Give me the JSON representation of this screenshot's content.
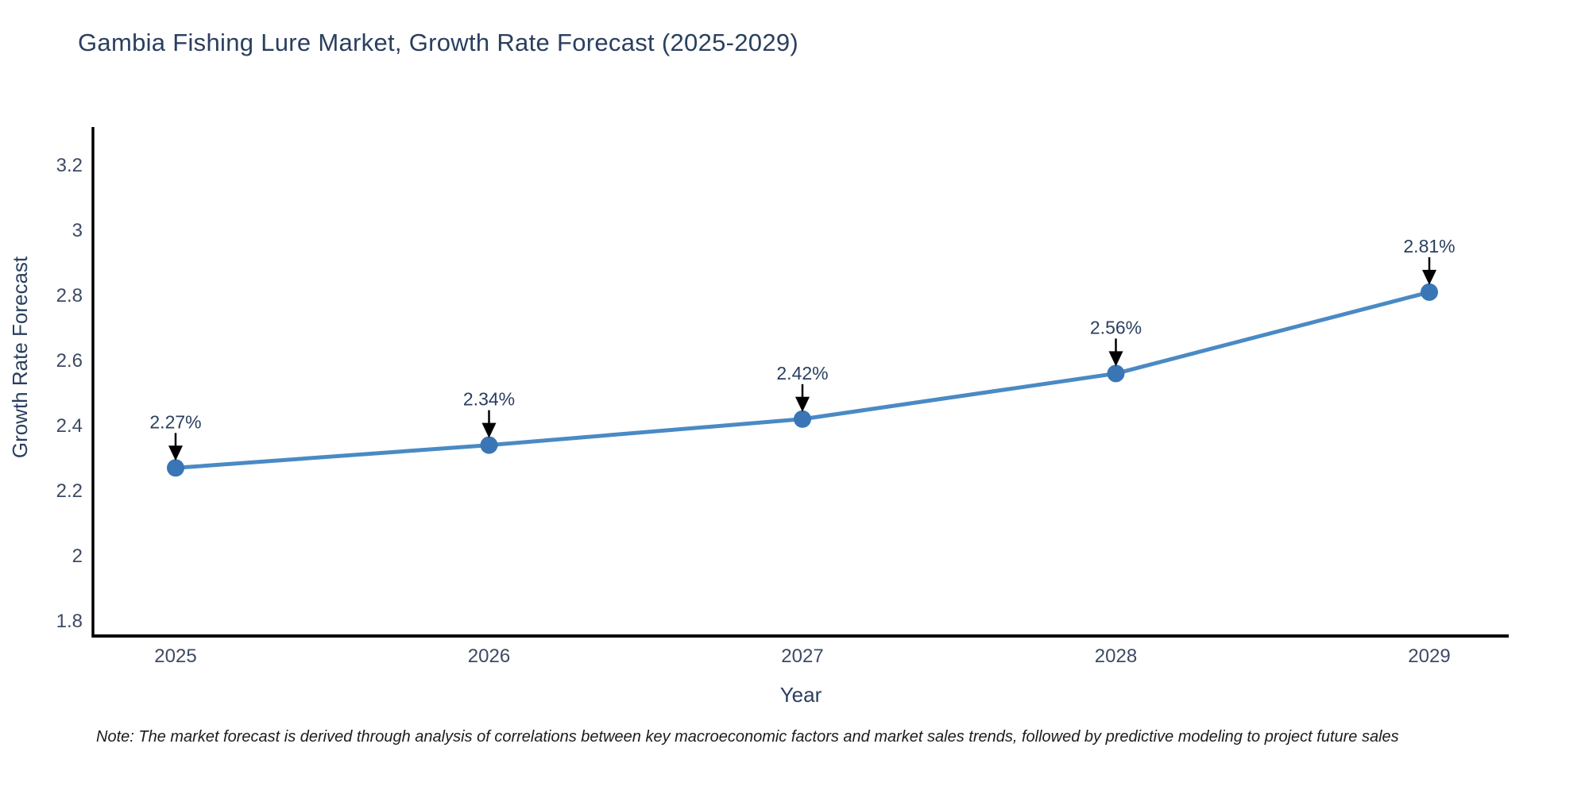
{
  "page": {
    "background_color": "#ffffff"
  },
  "chart": {
    "title": "Gambia Fishing Lure Market, Growth Rate Forecast (2025-2029)",
    "note": "Note: The market forecast is derived through analysis of correlations between key macroeconomic factors and market sales trends, followed by predictive modeling to project future sales",
    "x_axis": {
      "label": "Year",
      "tick_labels": [
        "2025",
        "2026",
        "2027",
        "2028",
        "2029"
      ]
    },
    "y_axis": {
      "label": "Growth Rate Forecast",
      "tick_labels": [
        "3.2",
        "3",
        "2.8",
        "2.6",
        "2.4",
        "2.2",
        "2",
        "1.8"
      ]
    },
    "colors": {
      "line": "#4a8ac4",
      "marker": "#3a76b5",
      "axis_line": "#000000",
      "arrow": "#000000",
      "title_text": "#2a3f5f",
      "tick_text": "#3d4a63",
      "annotation_text": "#2a3f5f",
      "note_text": "#1c1c1c"
    }
  },
  "chart_data": {
    "type": "line",
    "title": "Gambia Fishing Lure Market, Growth Rate Forecast (2025-2029)",
    "xlabel": "Year",
    "ylabel": "Growth Rate Forecast",
    "x": [
      2025,
      2026,
      2027,
      2028,
      2029
    ],
    "series": [
      {
        "name": "Growth Rate Forecast",
        "values": [
          2.27,
          2.34,
          2.42,
          2.56,
          2.81
        ]
      }
    ],
    "point_labels": [
      "2.27%",
      "2.34%",
      "2.42%",
      "2.56%",
      "2.81%"
    ],
    "yticks": [
      1.8,
      2.0,
      2.2,
      2.4,
      2.6,
      2.8,
      3.0,
      3.2
    ],
    "ylim": [
      1.75,
      3.35
    ],
    "xlim": [
      2024.73,
      2029.25
    ],
    "grid": false,
    "legend": "none",
    "marker_style": "circle",
    "annotation_arrows": true
  }
}
